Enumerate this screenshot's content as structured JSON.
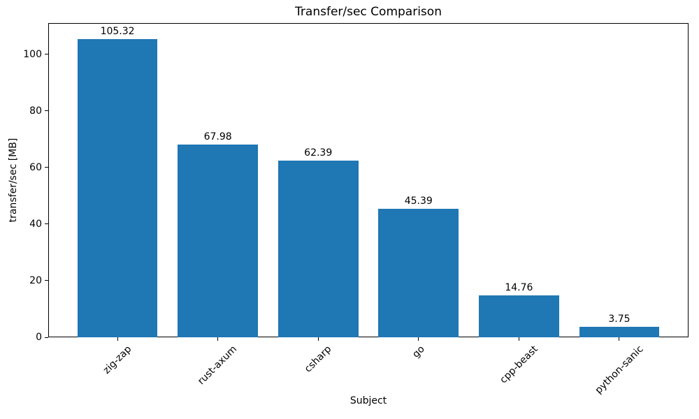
{
  "chart_data": {
    "type": "bar",
    "title": "Transfer/sec Comparison",
    "xlabel": "Subject",
    "ylabel": "transfer/sec [MB]",
    "categories": [
      "zig-zap",
      "rust-axum",
      "csharp",
      "go",
      "cpp-beast",
      "python-sanic"
    ],
    "values": [
      105.32,
      67.98,
      62.39,
      45.39,
      14.76,
      3.75
    ],
    "value_labels": [
      "105.32",
      "67.98",
      "62.39",
      "45.39",
      "14.76",
      "3.75"
    ],
    "yticks": [
      0,
      20,
      40,
      60,
      80,
      100
    ],
    "ylim": [
      0,
      111
    ],
    "xtick_rotation_deg": 45,
    "grid": false,
    "legend_position": "none",
    "bar_color": "#1f77b4",
    "axis_color": "#000000",
    "text_color": "#000000",
    "background_color": "#ffffff"
  }
}
